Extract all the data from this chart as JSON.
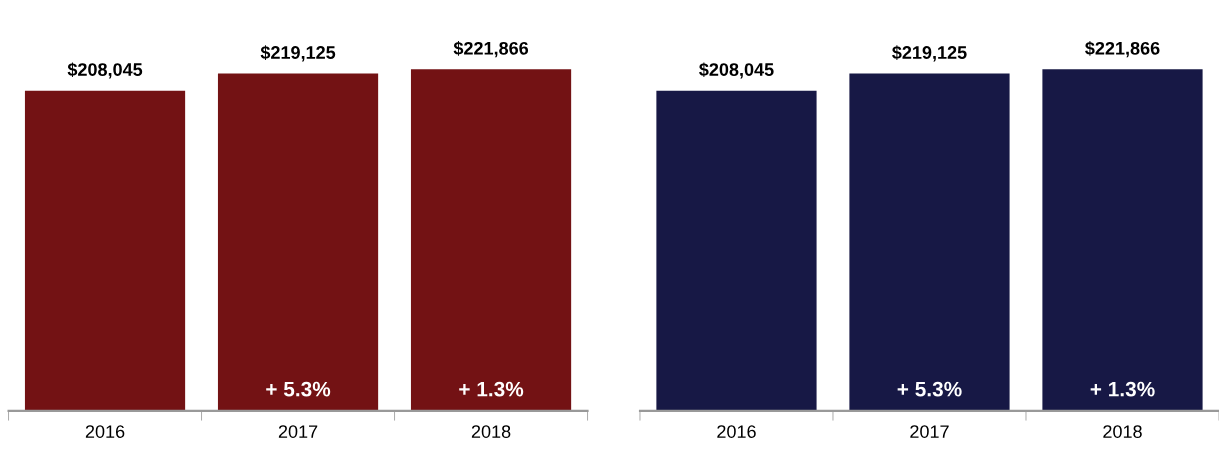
{
  "chart_data": [
    {
      "type": "bar",
      "categories": [
        "2016",
        "2017",
        "2018"
      ],
      "values": [
        208045,
        219125,
        221866
      ],
      "color": "#731214",
      "value_labels": [
        "$208,045",
        "$219,125",
        "$221,866"
      ],
      "annotations": [
        "+ 5.3%",
        "+ 1.3%"
      ],
      "grid": false,
      "legend": false
    },
    {
      "type": "bar",
      "categories": [
        "2016",
        "2017",
        "2018"
      ],
      "values": [
        208045,
        219125,
        221866
      ],
      "color": "#171845",
      "value_labels": [
        "$208,045",
        "$219,125",
        "$221,866"
      ],
      "annotations": [
        "+ 5.3%",
        "+ 1.3%"
      ],
      "grid": false,
      "legend": false
    }
  ]
}
